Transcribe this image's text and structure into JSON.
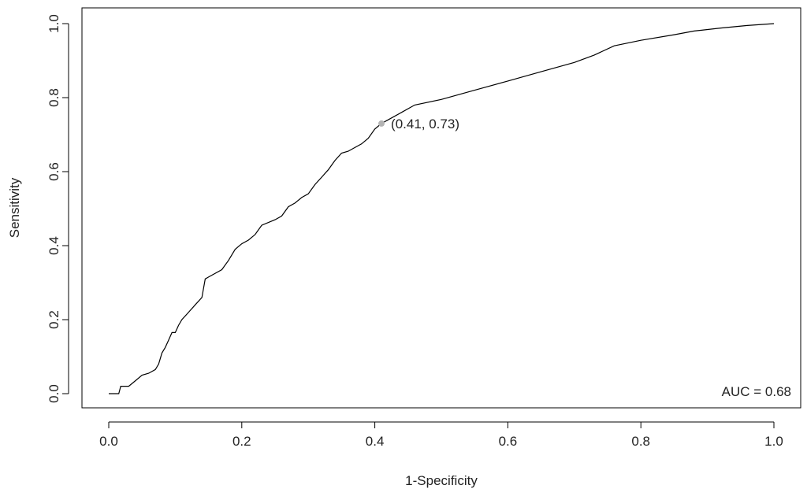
{
  "chart_data": {
    "type": "line",
    "title": "",
    "xlabel": "1-Specificity",
    "ylabel": "Sensitivity",
    "xlim": [
      0,
      1
    ],
    "ylim": [
      0,
      1
    ],
    "x_ticks": [
      "0.0",
      "0.2",
      "0.4",
      "0.6",
      "0.8",
      "1.0"
    ],
    "y_ticks": [
      "0.0",
      "0.2",
      "0.4",
      "0.6",
      "0.8",
      "1.0"
    ],
    "grid": false,
    "series": [
      {
        "x": [
          0.0,
          0.015,
          0.018,
          0.03,
          0.04,
          0.05,
          0.06,
          0.07,
          0.075,
          0.08,
          0.085,
          0.09,
          0.095,
          0.1,
          0.105,
          0.11,
          0.12,
          0.13,
          0.14,
          0.145,
          0.15,
          0.17,
          0.18,
          0.19,
          0.2,
          0.21,
          0.22,
          0.23,
          0.25,
          0.26,
          0.27,
          0.28,
          0.29,
          0.3,
          0.31,
          0.32,
          0.33,
          0.34,
          0.35,
          0.36,
          0.37,
          0.38,
          0.39,
          0.4,
          0.41,
          0.42,
          0.44,
          0.46,
          0.5,
          0.55,
          0.6,
          0.65,
          0.7,
          0.73,
          0.76,
          0.8,
          0.85,
          0.88,
          0.92,
          0.96,
          1.0
        ],
        "y": [
          0.0,
          0.0,
          0.02,
          0.02,
          0.035,
          0.05,
          0.055,
          0.065,
          0.08,
          0.11,
          0.125,
          0.145,
          0.165,
          0.165,
          0.185,
          0.2,
          0.22,
          0.24,
          0.26,
          0.31,
          0.315,
          0.335,
          0.36,
          0.39,
          0.405,
          0.415,
          0.43,
          0.455,
          0.47,
          0.48,
          0.505,
          0.515,
          0.53,
          0.54,
          0.565,
          0.585,
          0.605,
          0.63,
          0.65,
          0.655,
          0.665,
          0.675,
          0.69,
          0.715,
          0.73,
          0.74,
          0.76,
          0.78,
          0.795,
          0.82,
          0.845,
          0.87,
          0.895,
          0.915,
          0.94,
          0.955,
          0.97,
          0.98,
          0.988,
          0.995,
          1.0
        ],
        "color": "#000000"
      }
    ],
    "highlight_point": {
      "x": 0.41,
      "y": 0.73,
      "label": "(0.41, 0.73)",
      "color": "#b3b3b3"
    },
    "annotations": [
      {
        "text": "AUC = 0.68",
        "position": "bottom-right"
      }
    ]
  }
}
